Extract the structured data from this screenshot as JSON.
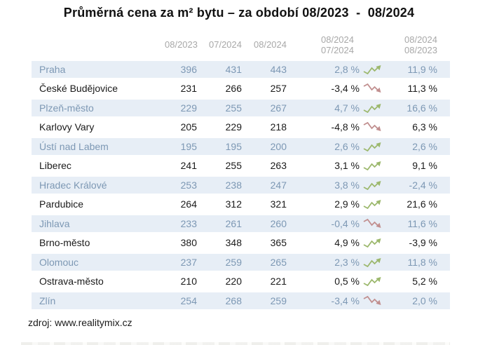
{
  "title": "Průměrná cena za m² bytu – za období 08/2023  -  08/2024",
  "table": {
    "headers": {
      "col_082023": "08/2023",
      "col_072024": "07/2024",
      "col_082024": "08/2024",
      "col_mom_top": "08/2024",
      "col_mom_bottom": "07/2024",
      "col_yoy_top": "08/2024",
      "col_yoy_bottom": "08/2023"
    },
    "rows": [
      {
        "city": "Praha",
        "v_082023": "396",
        "v_072024": "431",
        "v_082024": "443",
        "mom": "2,8 %",
        "trend": "up",
        "yoy": "11,9 %"
      },
      {
        "city": "České Budějovice",
        "v_082023": "231",
        "v_072024": "266",
        "v_082024": "257",
        "mom": "-3,4 %",
        "trend": "down",
        "yoy": "11,3 %"
      },
      {
        "city": "Plzeň-město",
        "v_082023": "229",
        "v_072024": "255",
        "v_082024": "267",
        "mom": "4,7 %",
        "trend": "up",
        "yoy": "16,6 %"
      },
      {
        "city": "Karlovy Vary",
        "v_082023": "205",
        "v_072024": "229",
        "v_082024": "218",
        "mom": "-4,8 %",
        "trend": "down",
        "yoy": "6,3 %"
      },
      {
        "city": "Ústí nad Labem",
        "v_082023": "195",
        "v_072024": "195",
        "v_082024": "200",
        "mom": "2,6 %",
        "trend": "up",
        "yoy": "2,6 %"
      },
      {
        "city": "Liberec",
        "v_082023": "241",
        "v_072024": "255",
        "v_082024": "263",
        "mom": "3,1 %",
        "trend": "up",
        "yoy": "9,1 %"
      },
      {
        "city": "Hradec Králové",
        "v_082023": "253",
        "v_072024": "238",
        "v_082024": "247",
        "mom": "3,8 %",
        "trend": "up",
        "yoy": "-2,4 %"
      },
      {
        "city": "Pardubice",
        "v_082023": "264",
        "v_072024": "312",
        "v_082024": "321",
        "mom": "2,9 %",
        "trend": "up",
        "yoy": "21,6 %"
      },
      {
        "city": "Jihlava",
        "v_082023": "233",
        "v_072024": "261",
        "v_082024": "260",
        "mom": "-0,4 %",
        "trend": "down",
        "yoy": "11,6 %"
      },
      {
        "city": "Brno-město",
        "v_082023": "380",
        "v_072024": "348",
        "v_082024": "365",
        "mom": "4,9 %",
        "trend": "up",
        "yoy": "-3,9 %"
      },
      {
        "city": "Olomouc",
        "v_082023": "237",
        "v_072024": "259",
        "v_082024": "265",
        "mom": "2,3 %",
        "trend": "up",
        "yoy": "11,8 %"
      },
      {
        "city": "Ostrava-město",
        "v_082023": "210",
        "v_072024": "220",
        "v_082024": "221",
        "mom": "0,5 %",
        "trend": "up",
        "yoy": "5,2 %"
      },
      {
        "city": "Zlín",
        "v_082023": "254",
        "v_072024": "268",
        "v_082024": "259",
        "mom": "-3,4 %",
        "trend": "down",
        "yoy": "2,0 %"
      }
    ]
  },
  "footer": {
    "source": "zdroj: www.realitymix.cz"
  },
  "colors": {
    "row_alt_bg": "#e7eef6",
    "row_alt_text": "#7d98b4",
    "row_text": "#1a1a1a",
    "header_text": "#a8a8a8",
    "arrow_up": "#9cb86d",
    "arrow_down": "#c18f8f"
  }
}
